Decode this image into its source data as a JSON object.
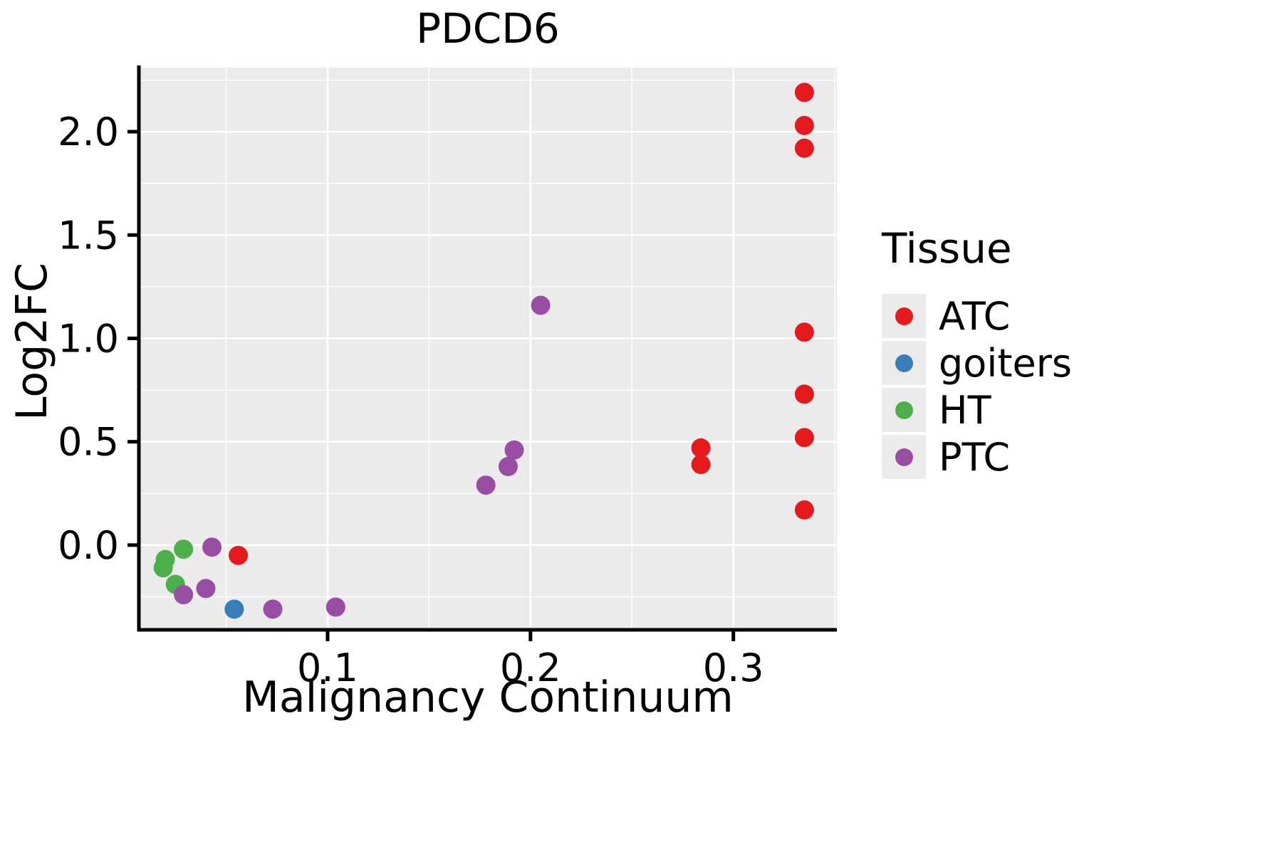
{
  "chart_data": {
    "type": "scatter",
    "title": "PDCD6",
    "xlabel": "Malignancy Continuum",
    "ylabel": "Log2FC",
    "xlim": [
      0.007,
      0.351
    ],
    "ylim": [
      -0.41,
      2.31
    ],
    "x_major_ticks": [
      0.1,
      0.2,
      0.3
    ],
    "x_tick_labels": [
      "0.1",
      "0.2",
      "0.3"
    ],
    "x_minor_ticks": [
      0.05,
      0.15,
      0.25,
      0.35
    ],
    "y_major_ticks": [
      0.0,
      0.5,
      1.0,
      1.5,
      2.0
    ],
    "y_tick_labels": [
      "0.0",
      "0.5",
      "1.0",
      "1.5",
      "2.0"
    ],
    "y_minor_ticks": [
      -0.25,
      0.25,
      0.75,
      1.25,
      1.75,
      2.25
    ],
    "grid": true,
    "panel_bg": "#EBEBEB",
    "grid_color": "#FFFFFF",
    "axis_color": "#000000",
    "point_radius": 13.5,
    "legend": {
      "title": "Tissue",
      "position": "right",
      "entries": [
        {
          "label": "ATC",
          "color": "#E41A1C"
        },
        {
          "label": "goiters",
          "color": "#377EB8"
        },
        {
          "label": "HT",
          "color": "#4DAF4A"
        },
        {
          "label": "PTC",
          "color": "#984EA3"
        }
      ]
    },
    "series": [
      {
        "name": "ATC",
        "color": "#E41A1C",
        "points": [
          [
            0.335,
            2.19
          ],
          [
            0.335,
            2.03
          ],
          [
            0.335,
            1.92
          ],
          [
            0.335,
            1.03
          ],
          [
            0.335,
            0.73
          ],
          [
            0.335,
            0.52
          ],
          [
            0.335,
            0.17
          ],
          [
            0.284,
            0.47
          ],
          [
            0.284,
            0.39
          ],
          [
            0.056,
            -0.05
          ]
        ]
      },
      {
        "name": "goiters",
        "color": "#377EB8",
        "points": [
          [
            0.054,
            -0.31
          ]
        ]
      },
      {
        "name": "HT",
        "color": "#4DAF4A",
        "points": [
          [
            0.02,
            -0.07
          ],
          [
            0.019,
            -0.11
          ],
          [
            0.025,
            -0.19
          ],
          [
            0.029,
            -0.02
          ]
        ]
      },
      {
        "name": "PTC",
        "color": "#984EA3",
        "points": [
          [
            0.205,
            1.16
          ],
          [
            0.192,
            0.46
          ],
          [
            0.189,
            0.38
          ],
          [
            0.178,
            0.29
          ],
          [
            0.043,
            -0.01
          ],
          [
            0.04,
            -0.21
          ],
          [
            0.029,
            -0.24
          ],
          [
            0.073,
            -0.31
          ],
          [
            0.104,
            -0.3
          ]
        ]
      }
    ]
  }
}
